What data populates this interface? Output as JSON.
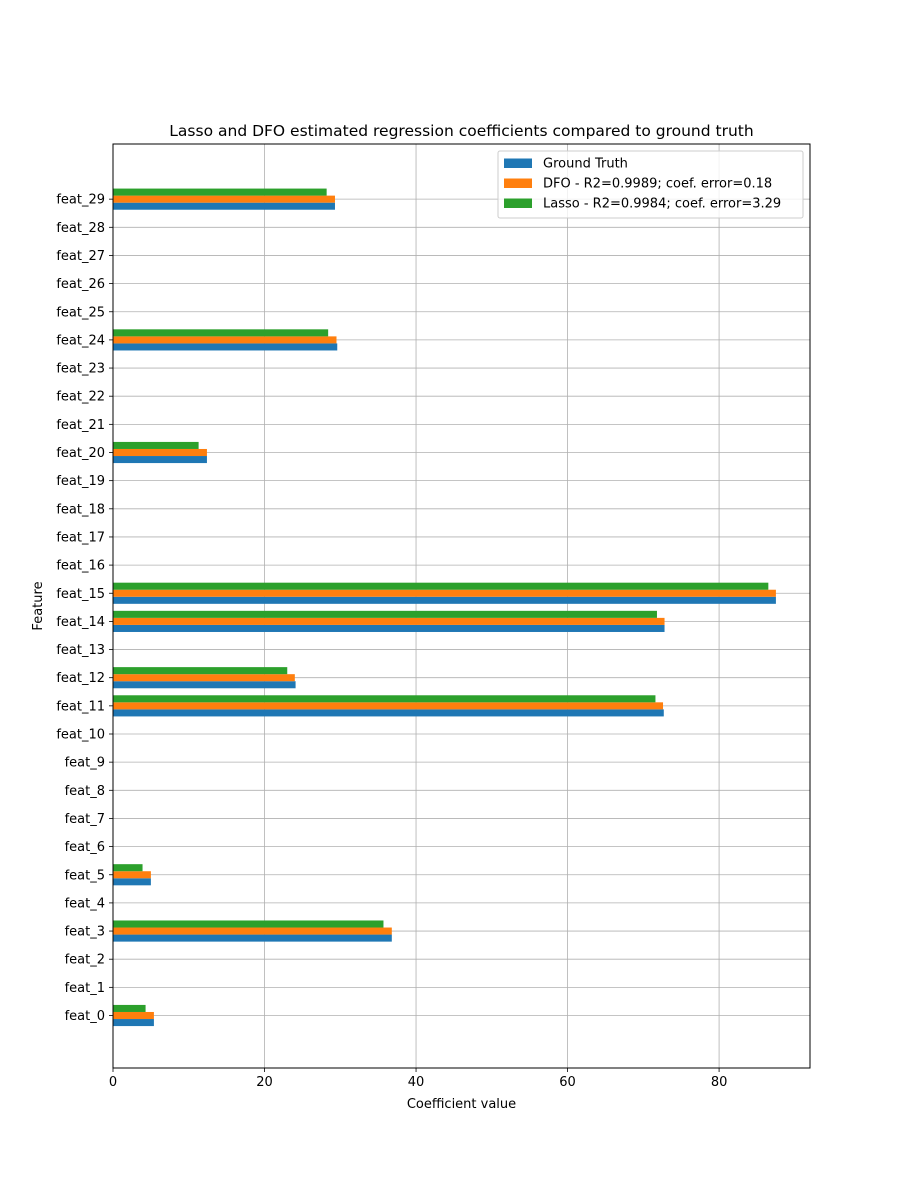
{
  "chart_data": {
    "type": "bar",
    "orientation": "horizontal",
    "title": "Lasso and DFO estimated regression coefficients compared to ground truth",
    "xlabel": "Coefficient value",
    "ylabel": "Feature",
    "xlim": [
      0,
      92
    ],
    "x_ticks": [
      0,
      20,
      40,
      60,
      80
    ],
    "grid": true,
    "legend_position": "top-right",
    "categories": [
      "feat_0",
      "feat_1",
      "feat_2",
      "feat_3",
      "feat_4",
      "feat_5",
      "feat_6",
      "feat_7",
      "feat_8",
      "feat_9",
      "feat_10",
      "feat_11",
      "feat_12",
      "feat_13",
      "feat_14",
      "feat_15",
      "feat_16",
      "feat_17",
      "feat_18",
      "feat_19",
      "feat_20",
      "feat_21",
      "feat_22",
      "feat_23",
      "feat_24",
      "feat_25",
      "feat_26",
      "feat_27",
      "feat_28",
      "feat_29"
    ],
    "series": [
      {
        "name": "Ground Truth",
        "color": "#1f77b4",
        "values": [
          5.4,
          0,
          0,
          36.8,
          0,
          5.0,
          0,
          0,
          0,
          0,
          0,
          72.7,
          24.1,
          0,
          72.8,
          87.5,
          0,
          0,
          0,
          0,
          12.4,
          0,
          0,
          0,
          29.6,
          0,
          0,
          0,
          0,
          29.3
        ]
      },
      {
        "name": "DFO - R2=0.9989; coef. error=0.18",
        "color": "#ff7f0e",
        "values": [
          5.4,
          0,
          0,
          36.8,
          0,
          5.0,
          0,
          0,
          0,
          0,
          0,
          72.6,
          24.0,
          0,
          72.8,
          87.5,
          0,
          0,
          0,
          0,
          12.4,
          0,
          0,
          0,
          29.5,
          0,
          0,
          0,
          0,
          29.3
        ]
      },
      {
        "name": "Lasso - R2=0.9984; coef. error=3.29",
        "color": "#2ca02c",
        "values": [
          4.3,
          0,
          0,
          35.7,
          0,
          3.9,
          0,
          0,
          0,
          0,
          0,
          71.6,
          23.0,
          0,
          71.8,
          86.5,
          0,
          0,
          0,
          0,
          11.3,
          0,
          0,
          0,
          28.4,
          0,
          0,
          0,
          0,
          28.2
        ]
      }
    ]
  }
}
